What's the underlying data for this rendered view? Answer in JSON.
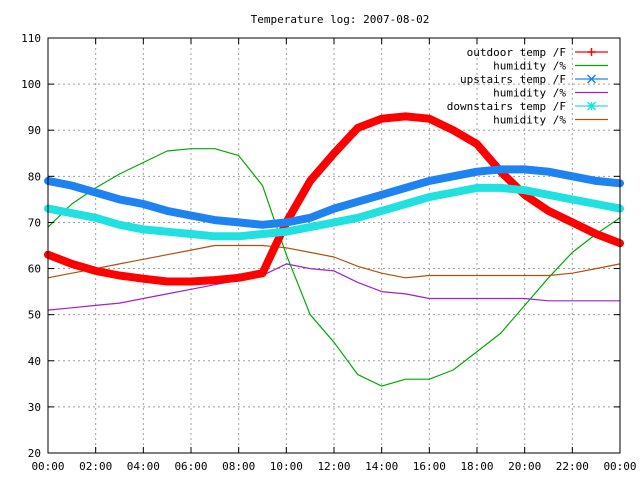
{
  "chart_data": {
    "type": "line",
    "title": "Temperature log: 2007-08-02",
    "xlabel": "",
    "ylabel": "",
    "xlim": [
      "00:00",
      "24:00"
    ],
    "ylim": [
      20,
      110
    ],
    "grid": true,
    "legend_position": "top-right",
    "x_tick_labels": [
      "00:00",
      "02:00",
      "04:00",
      "06:00",
      "08:00",
      "10:00",
      "12:00",
      "14:00",
      "16:00",
      "18:00",
      "20:00",
      "22:00",
      "00:00"
    ],
    "y_tick_labels": [
      "20",
      "30",
      "40",
      "50",
      "60",
      "70",
      "80",
      "90",
      "100",
      "110"
    ],
    "x_hours": [
      0,
      1,
      2,
      3,
      4,
      5,
      6,
      7,
      8,
      9,
      10,
      11,
      12,
      13,
      14,
      15,
      16,
      17,
      18,
      19,
      20,
      21,
      22,
      23,
      24
    ],
    "series": [
      {
        "name": "outdoor temp /F",
        "color": "#ff0000",
        "marker": "plus",
        "thick": true,
        "values": [
          63.0,
          61.0,
          59.5,
          58.5,
          57.8,
          57.2,
          57.2,
          57.5,
          58.0,
          59.0,
          70.0,
          79.0,
          85.0,
          90.5,
          92.5,
          93.0,
          92.5,
          90.0,
          87.0,
          81.0,
          76.0,
          72.5,
          70.0,
          67.5,
          65.5
        ]
      },
      {
        "name": "humidity /%",
        "color": "#00aa00",
        "marker": "none",
        "thick": false,
        "values": [
          69.0,
          74.0,
          77.5,
          80.5,
          83.0,
          85.5,
          86.0,
          86.0,
          84.5,
          78.0,
          63.0,
          50.0,
          44.0,
          37.0,
          34.5,
          36.0,
          36.0,
          38.0,
          42.0,
          46.0,
          52.0,
          58.0,
          63.5,
          67.5,
          71.0
        ]
      },
      {
        "name": "upstairs temp /F",
        "color": "#1e82f0",
        "marker": "cross",
        "thick": true,
        "values": [
          79.0,
          78.0,
          76.5,
          75.0,
          74.0,
          72.5,
          71.5,
          70.5,
          70.0,
          69.5,
          70.0,
          71.0,
          73.0,
          74.5,
          76.0,
          77.5,
          79.0,
          80.0,
          81.0,
          81.5,
          81.5,
          81.0,
          80.0,
          79.0,
          78.5
        ]
      },
      {
        "name": "humidity /%",
        "color": "#a020d0",
        "marker": "none",
        "thick": false,
        "values": [
          51.0,
          51.5,
          52.0,
          52.5,
          53.5,
          54.5,
          55.5,
          56.5,
          57.5,
          58.5,
          61.0,
          60.0,
          59.5,
          57.0,
          55.0,
          54.5,
          53.5,
          53.5,
          53.5,
          53.5,
          53.5,
          53.0,
          53.0,
          53.0,
          53.0
        ]
      },
      {
        "name": "downstairs temp /F",
        "color": "#20e0e0",
        "marker": "star",
        "thick": true,
        "values": [
          73.0,
          72.0,
          71.0,
          69.5,
          68.5,
          68.0,
          67.5,
          67.0,
          67.0,
          67.5,
          68.0,
          69.0,
          70.0,
          71.0,
          72.5,
          74.0,
          75.5,
          76.5,
          77.5,
          77.5,
          77.0,
          76.0,
          75.0,
          74.0,
          73.0
        ]
      },
      {
        "name": "humidity /%",
        "color": "#b05010",
        "marker": "none",
        "thick": false,
        "values": [
          58.0,
          59.0,
          60.0,
          61.0,
          62.0,
          63.0,
          64.0,
          65.0,
          65.0,
          65.0,
          64.5,
          63.5,
          62.5,
          60.5,
          59.0,
          58.0,
          58.5,
          58.5,
          58.5,
          58.5,
          58.5,
          58.5,
          59.0,
          60.0,
          61.0
        ]
      }
    ]
  }
}
